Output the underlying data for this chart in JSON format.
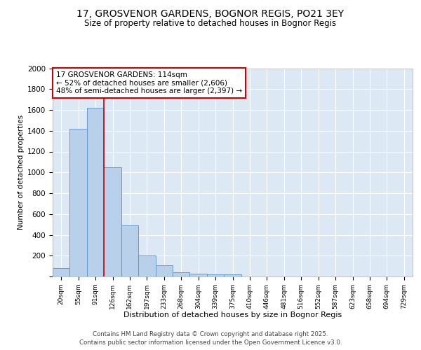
{
  "title": "17, GROSVENOR GARDENS, BOGNOR REGIS, PO21 3EY",
  "subtitle": "Size of property relative to detached houses in Bognor Regis",
  "xlabel": "Distribution of detached houses by size in Bognor Regis",
  "ylabel": "Number of detached properties",
  "bar_labels": [
    "20sqm",
    "55sqm",
    "91sqm",
    "126sqm",
    "162sqm",
    "197sqm",
    "233sqm",
    "268sqm",
    "304sqm",
    "339sqm",
    "375sqm",
    "410sqm",
    "446sqm",
    "481sqm",
    "516sqm",
    "552sqm",
    "587sqm",
    "623sqm",
    "658sqm",
    "694sqm",
    "729sqm"
  ],
  "bar_values": [
    80,
    1420,
    1620,
    1050,
    490,
    200,
    105,
    40,
    30,
    20,
    20,
    0,
    0,
    0,
    0,
    0,
    0,
    0,
    0,
    0,
    0
  ],
  "bar_color": "#b8d0ea",
  "bar_edge_color": "#6699cc",
  "background_color": "#dde8f5",
  "grid_color": "#ffffff",
  "vline_color": "#cc0000",
  "annotation_text": "17 GROSVENOR GARDENS: 114sqm\n← 52% of detached houses are smaller (2,606)\n48% of semi-detached houses are larger (2,397) →",
  "annotation_box_facecolor": "#ffffff",
  "annotation_box_edgecolor": "#cc0000",
  "ylim": [
    0,
    2000
  ],
  "yticks": [
    0,
    200,
    400,
    600,
    800,
    1000,
    1200,
    1400,
    1600,
    1800,
    2000
  ],
  "fig_facecolor": "#ffffff",
  "footer_line1": "Contains HM Land Registry data © Crown copyright and database right 2025.",
  "footer_line2": "Contains public sector information licensed under the Open Government Licence v3.0."
}
